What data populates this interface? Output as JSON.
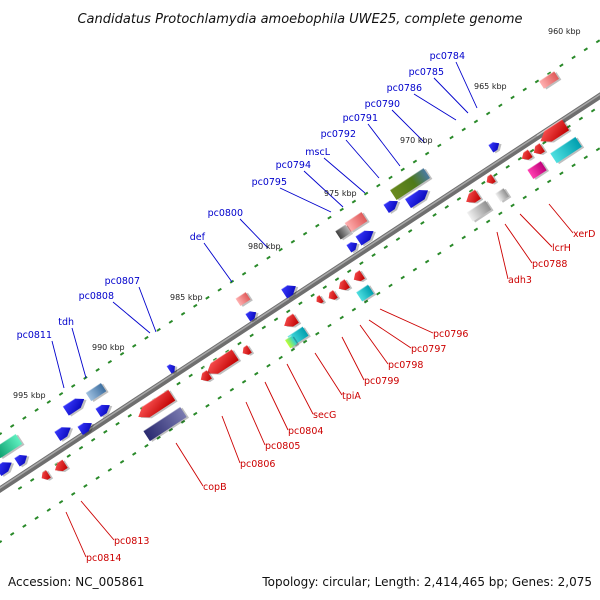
{
  "title": "Candidatus Protochlamydia amoebophila UWE25, complete genome",
  "accession": "Accession: NC_005861",
  "topology": "Topology: circular; Length: 2,414,465 bp; Genes: 2,075",
  "kbp_labels": [
    "960 kbp",
    "965 kbp",
    "970 kbp",
    "975 kbp",
    "980 kbp",
    "985 kbp",
    "990 kbp",
    "995 kbp"
  ],
  "labels_top": [
    "pc0784",
    "pc0785",
    "pc0786",
    "pc0790",
    "pc0791",
    "pc0792",
    "mscL",
    "pc0794",
    "pc0795",
    "pc0800",
    "def",
    "pc0807",
    "pc0808",
    "tdh",
    "pc0811"
  ],
  "labels_bottom": [
    "xerD",
    "lcrH",
    "pc0788",
    "adh3",
    "pc0796",
    "pc0797",
    "pc0798",
    "pc0799",
    "tpiA",
    "secG",
    "pc0804",
    "pc0805",
    "pc0806",
    "copB",
    "pc0813",
    "pc0814"
  ],
  "colors": {
    "forward": "#0000ee",
    "reverse": "#ee0000",
    "axis": "#777777",
    "tick": "#228822",
    "label_top": "#0000cc",
    "label_bottom": "#cc0000"
  }
}
